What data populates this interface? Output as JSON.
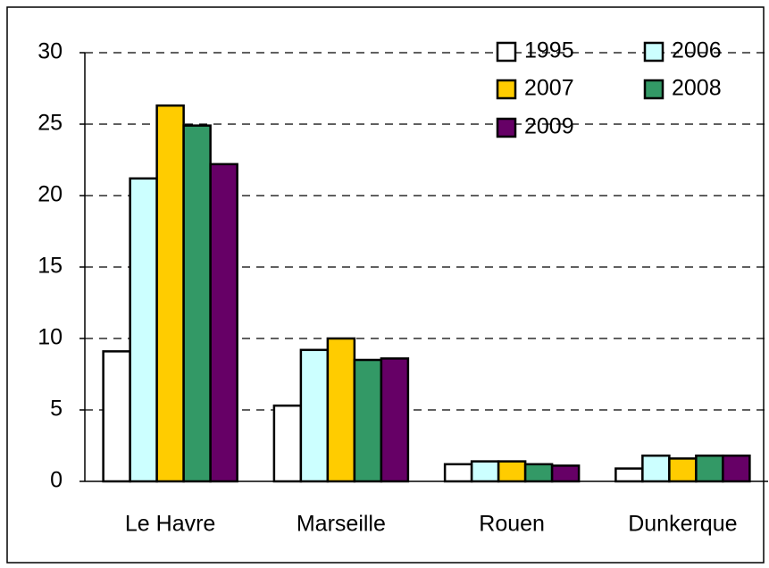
{
  "chart_data": {
    "type": "bar",
    "categories": [
      "Le Havre",
      "Marseille",
      "Rouen",
      "Dunkerque"
    ],
    "series": [
      {
        "name": "1995",
        "color": "#ffffff",
        "values": [
          9.1,
          5.3,
          1.2,
          0.9
        ]
      },
      {
        "name": "2006",
        "color": "#ccffff",
        "values": [
          21.2,
          9.2,
          1.4,
          1.8
        ]
      },
      {
        "name": "2007",
        "color": "#ffcc00",
        "values": [
          26.3,
          10.0,
          1.4,
          1.6
        ]
      },
      {
        "name": "2008",
        "color": "#339966",
        "values": [
          24.9,
          8.5,
          1.2,
          1.8
        ]
      },
      {
        "name": "2009",
        "color": "#660066",
        "values": [
          22.2,
          8.6,
          1.1,
          1.8
        ]
      }
    ],
    "ylim": [
      0,
      30
    ],
    "yticks": [
      0,
      5,
      10,
      15,
      20,
      25,
      30
    ],
    "grid": true,
    "legend": "top-right"
  }
}
